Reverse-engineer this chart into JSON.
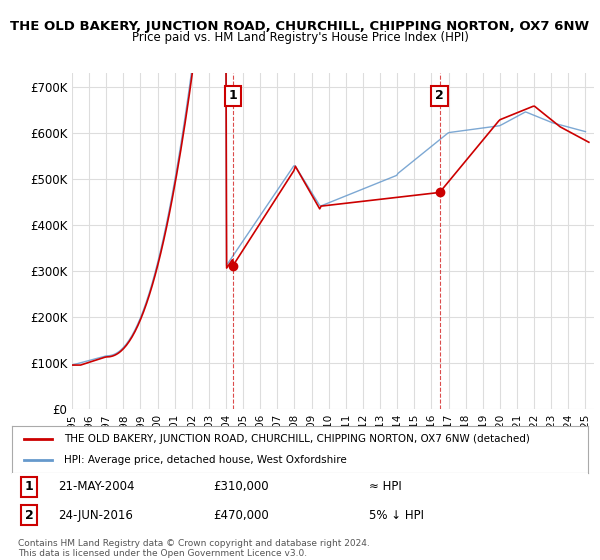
{
  "title": "THE OLD BAKERY, JUNCTION ROAD, CHURCHILL, CHIPPING NORTON, OX7 6NW",
  "subtitle": "Price paid vs. HM Land Registry's House Price Index (HPI)",
  "ylabel_ticks": [
    "£0",
    "£100K",
    "£200K",
    "£300K",
    "£400K",
    "£500K",
    "£600K",
    "£700K"
  ],
  "ytick_values": [
    0,
    100000,
    200000,
    300000,
    400000,
    500000,
    600000,
    700000
  ],
  "ylim": [
    0,
    730000
  ],
  "xlim_start": 1995.0,
  "xlim_end": 2025.5,
  "sale1_x": 2004.39,
  "sale1_y": 310000,
  "sale1_label": "1",
  "sale1_date": "21-MAY-2004",
  "sale1_price": "£310,000",
  "sale1_hpi": "≈ HPI",
  "sale2_x": 2016.48,
  "sale2_y": 470000,
  "sale2_label": "2",
  "sale2_date": "24-JUN-2016",
  "sale2_price": "£470,000",
  "sale2_hpi": "5% ↓ HPI",
  "legend_line1": "THE OLD BAKERY, JUNCTION ROAD, CHURCHILL, CHIPPING NORTON, OX7 6NW (detached)",
  "legend_line2": "HPI: Average price, detached house, West Oxfordshire",
  "footer": "Contains HM Land Registry data © Crown copyright and database right 2024.\nThis data is licensed under the Open Government Licence v3.0.",
  "line_color_red": "#cc0000",
  "line_color_blue": "#6699cc",
  "bg_color": "#ffffff",
  "grid_color": "#dddddd"
}
